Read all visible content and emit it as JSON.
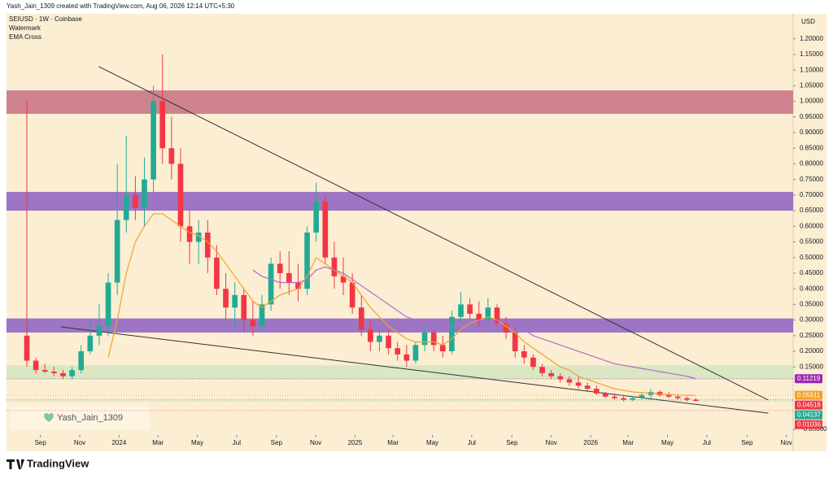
{
  "header": {
    "credit": "Yash_Jain_1309 created with TradingView.com, Aug 06, 2026 12:14 UTC+5:30",
    "symbol": "SEIUSD · 1W · Coinbase",
    "indicators": [
      "Watermark",
      "EMA Cross"
    ],
    "currency": "USD",
    "watermark": "Yash_Jain_1309",
    "logo": "TradingView"
  },
  "chart_data": {
    "type": "candlestick",
    "background": "#fbeed2",
    "up_color": "#22ab94",
    "down_color": "#f23645",
    "x": [
      -3,
      -1,
      1,
      3,
      5,
      7,
      9,
      11,
      13,
      15,
      17,
      19,
      21,
      23,
      25,
      27,
      29,
      31,
      33,
      35,
      37,
      39,
      41,
      43,
      45,
      47,
      49,
      51,
      53,
      55,
      57,
      59,
      61,
      63,
      65,
      67,
      69,
      71,
      73,
      75,
      77,
      79,
      81,
      83,
      85,
      87,
      89,
      91,
      93,
      95,
      97,
      99,
      101,
      103,
      105,
      107,
      109,
      111,
      113,
      115,
      117,
      119,
      121,
      123,
      125,
      127,
      129,
      131,
      133,
      135,
      137,
      139,
      141,
      143,
      145
    ],
    "open": [
      0.25,
      0.17,
      0.14,
      0.135,
      0.13,
      0.12,
      0.14,
      0.2,
      0.25,
      0.28,
      0.42,
      0.62,
      0.7,
      0.66,
      0.75,
      1.0,
      0.85,
      0.8,
      0.6,
      0.55,
      0.58,
      0.5,
      0.4,
      0.34,
      0.38,
      0.3,
      0.28,
      0.35,
      0.48,
      0.45,
      0.42,
      0.4,
      0.58,
      0.68,
      0.5,
      0.44,
      0.42,
      0.34,
      0.27,
      0.23,
      0.25,
      0.21,
      0.19,
      0.17,
      0.22,
      0.26,
      0.22,
      0.2,
      0.31,
      0.35,
      0.32,
      0.3,
      0.34,
      0.29,
      0.26,
      0.2,
      0.18,
      0.15,
      0.13,
      0.12,
      0.11,
      0.1,
      0.09,
      0.08,
      0.065,
      0.055,
      0.05,
      0.045,
      0.05,
      0.06,
      0.07,
      0.06,
      0.055,
      0.05,
      0.045
    ],
    "high": [
      1.0,
      0.18,
      0.16,
      0.15,
      0.14,
      0.15,
      0.22,
      0.3,
      0.35,
      0.45,
      0.8,
      0.89,
      0.76,
      0.82,
      1.05,
      1.15,
      0.95,
      0.85,
      0.65,
      0.62,
      0.62,
      0.54,
      0.45,
      0.42,
      0.4,
      0.36,
      0.38,
      0.5,
      0.52,
      0.52,
      0.48,
      0.6,
      0.74,
      0.7,
      0.55,
      0.5,
      0.45,
      0.38,
      0.3,
      0.28,
      0.27,
      0.23,
      0.22,
      0.23,
      0.28,
      0.27,
      0.25,
      0.33,
      0.39,
      0.37,
      0.36,
      0.37,
      0.35,
      0.31,
      0.28,
      0.22,
      0.19,
      0.16,
      0.14,
      0.13,
      0.12,
      0.12,
      0.1,
      0.09,
      0.07,
      0.065,
      0.06,
      0.055,
      0.065,
      0.08,
      0.075,
      0.07,
      0.06,
      0.055,
      0.05
    ],
    "low": [
      0.15,
      0.13,
      0.13,
      0.12,
      0.11,
      0.11,
      0.13,
      0.19,
      0.22,
      0.25,
      0.38,
      0.58,
      0.62,
      0.6,
      0.7,
      0.8,
      0.75,
      0.55,
      0.48,
      0.48,
      0.45,
      0.38,
      0.3,
      0.28,
      0.26,
      0.25,
      0.26,
      0.33,
      0.4,
      0.38,
      0.36,
      0.38,
      0.55,
      0.48,
      0.4,
      0.38,
      0.32,
      0.25,
      0.2,
      0.2,
      0.19,
      0.17,
      0.15,
      0.16,
      0.2,
      0.2,
      0.18,
      0.19,
      0.29,
      0.3,
      0.28,
      0.28,
      0.28,
      0.24,
      0.18,
      0.16,
      0.14,
      0.12,
      0.11,
      0.1,
      0.09,
      0.08,
      0.07,
      0.06,
      0.05,
      0.045,
      0.04,
      0.04,
      0.045,
      0.05,
      0.055,
      0.05,
      0.045,
      0.04,
      0.04
    ],
    "close": [
      0.17,
      0.14,
      0.135,
      0.13,
      0.12,
      0.14,
      0.2,
      0.25,
      0.28,
      0.42,
      0.62,
      0.7,
      0.66,
      0.75,
      1.0,
      0.85,
      0.8,
      0.6,
      0.55,
      0.58,
      0.5,
      0.4,
      0.34,
      0.38,
      0.3,
      0.28,
      0.35,
      0.48,
      0.45,
      0.42,
      0.4,
      0.58,
      0.68,
      0.5,
      0.44,
      0.42,
      0.34,
      0.27,
      0.23,
      0.25,
      0.21,
      0.19,
      0.17,
      0.22,
      0.26,
      0.22,
      0.2,
      0.31,
      0.35,
      0.32,
      0.3,
      0.34,
      0.29,
      0.26,
      0.2,
      0.18,
      0.15,
      0.13,
      0.12,
      0.11,
      0.1,
      0.09,
      0.08,
      0.065,
      0.055,
      0.05,
      0.045,
      0.05,
      0.06,
      0.07,
      0.06,
      0.055,
      0.05,
      0.045,
      0.04137
    ],
    "series": [
      {
        "color": "#f2a22a",
        "values": [
          null,
          null,
          null,
          null,
          null,
          null,
          null,
          null,
          null,
          0.18,
          0.3,
          0.45,
          0.55,
          0.6,
          0.64,
          0.64,
          0.62,
          0.6,
          0.58,
          0.57,
          0.55,
          0.52,
          0.48,
          0.44,
          0.4,
          0.36,
          0.34,
          0.36,
          0.38,
          0.39,
          0.4,
          0.44,
          0.5,
          0.48,
          0.46,
          0.44,
          0.42,
          0.38,
          0.34,
          0.31,
          0.28,
          0.26,
          0.24,
          0.23,
          0.23,
          0.23,
          0.22,
          0.24,
          0.27,
          0.29,
          0.3,
          0.31,
          0.3,
          0.28,
          0.26,
          0.23,
          0.21,
          0.19,
          0.17,
          0.15,
          0.14,
          0.12,
          0.11,
          0.1,
          0.09,
          0.08,
          0.075,
          0.07,
          0.068,
          0.066,
          0.064,
          0.062,
          0.06,
          0.059,
          0.05911
        ]
      },
      {
        "color": "#b06ad0",
        "values": [
          null,
          null,
          null,
          null,
          null,
          null,
          null,
          null,
          null,
          null,
          null,
          null,
          null,
          null,
          null,
          null,
          null,
          null,
          null,
          null,
          null,
          null,
          null,
          null,
          null,
          0.46,
          0.44,
          0.43,
          0.42,
          0.42,
          0.42,
          0.43,
          0.46,
          0.47,
          0.46,
          0.45,
          0.43,
          0.41,
          0.39,
          0.37,
          0.35,
          0.33,
          0.31,
          0.3,
          0.3,
          0.29,
          0.28,
          0.28,
          0.29,
          0.3,
          0.3,
          0.3,
          0.3,
          0.29,
          0.28,
          0.27,
          0.25,
          0.24,
          0.23,
          0.22,
          0.21,
          0.2,
          0.19,
          0.18,
          0.17,
          0.16,
          0.155,
          0.15,
          0.145,
          0.14,
          0.135,
          0.13,
          0.125,
          0.12,
          0.11219
        ]
      }
    ],
    "zones": [
      {
        "low": 0.96,
        "high": 1.035,
        "color": "#c97585"
      },
      {
        "low": 0.65,
        "high": 0.71,
        "color": "#9367c2"
      },
      {
        "low": 0.26,
        "high": 0.305,
        "color": "#9367c2"
      },
      {
        "low": 0.11,
        "high": 0.155,
        "color": "#d6e6c0"
      }
    ],
    "trendlines": [
      {
        "x": [
          12.9,
          161
        ],
        "y": [
          1.111,
          0.044
        ]
      },
      {
        "x": [
          4.5,
          161
        ],
        "y": [
          0.278,
          0.002
        ]
      }
    ],
    "price_labels": [
      {
        "value": 0.11219,
        "label": "0.11219",
        "color": "#9c27b0"
      },
      {
        "value": 0.05911,
        "label": "0.05911",
        "color": "#f2a22a"
      },
      {
        "value": 0.04518,
        "label": "0.04518",
        "color": "#f23645"
      },
      {
        "value": 0.04137,
        "label": "0.04137",
        "color": "#22ab94"
      },
      {
        "value": 0.01036,
        "label": "0.01036",
        "color": "#f23645"
      }
    ],
    "xlim": [
      -7.5,
      166.5
    ],
    "ylim": [
      -0.068,
      1.28
    ],
    "xticks": [
      {
        "value": 0,
        "label": "Sep"
      },
      {
        "value": 8.7,
        "label": "Nov"
      },
      {
        "value": 17.4,
        "label": "2024"
      },
      {
        "value": 26,
        "label": "Mar"
      },
      {
        "value": 34.7,
        "label": "May"
      },
      {
        "value": 43.4,
        "label": "Jul"
      },
      {
        "value": 52.2,
        "label": "Sep"
      },
      {
        "value": 60.9,
        "label": "Nov"
      },
      {
        "value": 69.6,
        "label": "2025"
      },
      {
        "value": 78,
        "label": "Mar"
      },
      {
        "value": 86.7,
        "label": "May"
      },
      {
        "value": 95.4,
        "label": "Jul"
      },
      {
        "value": 104.3,
        "label": "Sep"
      },
      {
        "value": 113,
        "label": "Nov"
      },
      {
        "value": 121.7,
        "label": "2026"
      },
      {
        "value": 130,
        "label": "Mar"
      },
      {
        "value": 138.7,
        "label": "May"
      },
      {
        "value": 147.4,
        "label": "Jul"
      },
      {
        "value": 156.3,
        "label": "Sep"
      },
      {
        "value": 165,
        "label": "Nov"
      }
    ],
    "yticks": [
      {
        "value": 1.2,
        "label": "1.20000"
      },
      {
        "value": 1.15,
        "label": "1.15000"
      },
      {
        "value": 1.1,
        "label": "1.10000"
      },
      {
        "value": 1.05,
        "label": "1.05000"
      },
      {
        "value": 1.0,
        "label": "1.00000"
      },
      {
        "value": 0.95,
        "label": "0.95000"
      },
      {
        "value": 0.9,
        "label": "0.90000"
      },
      {
        "value": 0.85,
        "label": "0.85000"
      },
      {
        "value": 0.8,
        "label": "0.80000"
      },
      {
        "value": 0.75,
        "label": "0.75000"
      },
      {
        "value": 0.7,
        "label": "0.70000"
      },
      {
        "value": 0.65,
        "label": "0.65000"
      },
      {
        "value": 0.6,
        "label": "0.60000"
      },
      {
        "value": 0.55,
        "label": "0.55000"
      },
      {
        "value": 0.5,
        "label": "0.50000"
      },
      {
        "value": 0.45,
        "label": "0.45000"
      },
      {
        "value": 0.4,
        "label": "0.40000"
      },
      {
        "value": 0.35,
        "label": "0.35000"
      },
      {
        "value": 0.3,
        "label": "0.30000"
      },
      {
        "value": 0.25,
        "label": "0.25000"
      },
      {
        "value": 0.2,
        "label": "0.20000"
      },
      {
        "value": 0.15,
        "label": "0.15000"
      },
      {
        "value": -0.05,
        "label": "−0.05000"
      }
    ]
  }
}
